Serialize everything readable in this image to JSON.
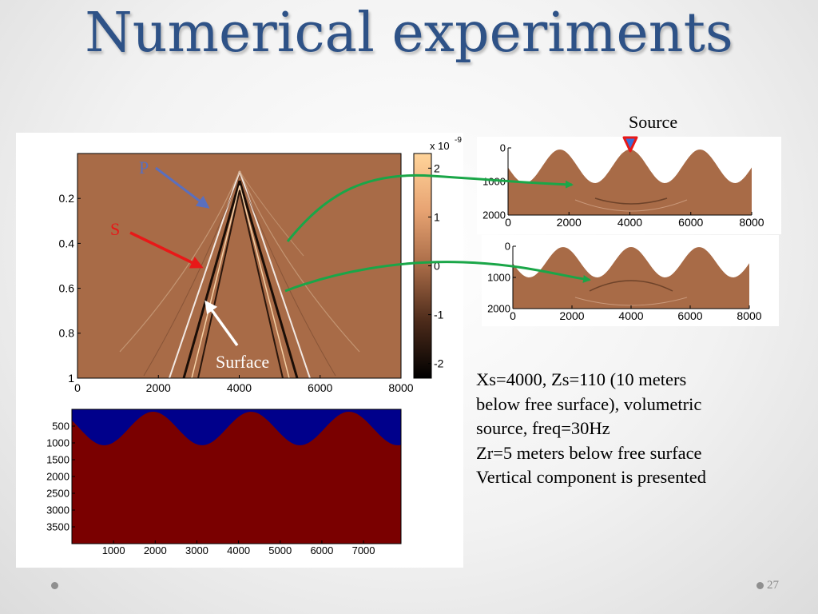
{
  "slide": {
    "title": "Numerical experiments",
    "page_number": "27"
  },
  "annotations": {
    "source": "Source",
    "surface": "Surface",
    "p_wave": "P",
    "s_wave": "S"
  },
  "description": {
    "lines": [
      "Xs=4000, Zs=110 (10 meters",
      "below free surface), volumetric",
      "source, freq=30Hz",
      "Zr=5 meters below free surface",
      "Vertical component is presented"
    ]
  },
  "colors": {
    "title": "#2e5287",
    "seismogram_background": "#a86b47",
    "model_top": "#00008b",
    "model_bottom": "#7a0000",
    "arrow_green": "#1aa648",
    "arrow_p": "#5a6fbd",
    "arrow_s": "#e81818"
  },
  "chart_data": [
    {
      "type": "heatmap",
      "x_ticks": [
        "0",
        "2000",
        "4000",
        "6000",
        "8000"
      ],
      "y_ticks": [
        "0.2",
        "0.4",
        "0.6",
        "0.8",
        "1"
      ],
      "xlim": [
        0,
        8000
      ],
      "ylim": [
        0,
        1
      ],
      "colorbar": {
        "exponent_label": "x 10",
        "exponent": "-9",
        "ticks": [
          "2",
          "1",
          "0",
          "-1",
          "-2"
        ],
        "range": [
          -2.3,
          2.3
        ]
      }
    },
    {
      "type": "heatmap",
      "x_ticks": [
        "0",
        "2000",
        "4000",
        "6000",
        "8000"
      ],
      "y_ticks": [
        "0",
        "1000",
        "2000"
      ],
      "xlim": [
        0,
        8000
      ],
      "ylim": [
        0,
        2000
      ]
    },
    {
      "type": "heatmap",
      "x_ticks": [
        "0",
        "2000",
        "4000",
        "6000",
        "8000"
      ],
      "y_ticks": [
        "0",
        "1000",
        "2000"
      ],
      "xlim": [
        0,
        8000
      ],
      "ylim": [
        0,
        2000
      ]
    },
    {
      "type": "heatmap",
      "x_ticks": [
        "1000",
        "2000",
        "3000",
        "4000",
        "5000",
        "6000",
        "7000"
      ],
      "y_ticks": [
        "500",
        "1000",
        "1500",
        "2000",
        "2500",
        "3000",
        "3500"
      ],
      "xlim": [
        0,
        7900
      ],
      "ylim": [
        4000,
        0
      ]
    }
  ]
}
